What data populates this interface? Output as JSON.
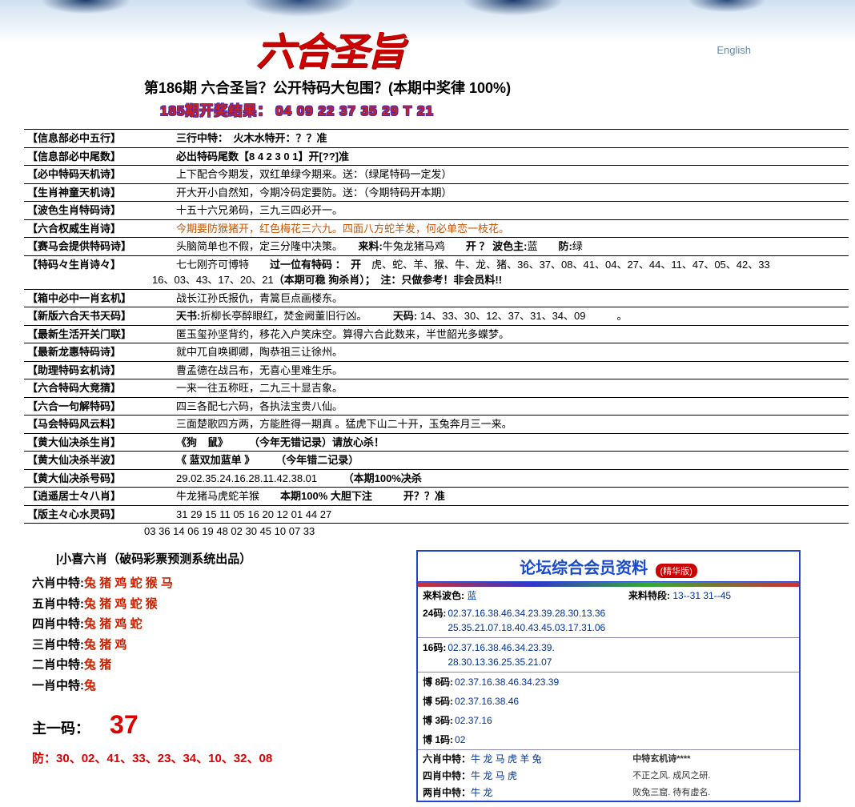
{
  "header": {
    "logo_text": "六合圣旨",
    "english_label": "English",
    "title": "第186期 六合圣旨？公开特码大包围？(本期中奖律 100%)",
    "result_prefix": "185期开奖结果：",
    "result_numbers": "04 09 22 37 35 29 T 21"
  },
  "rows": [
    {
      "label": "【信息部必中五行】",
      "content": "三行中特：　火木水特开：？？准",
      "bold_prefix": true
    },
    {
      "label": "【信息部必中尾数】",
      "content": "必出特码尾数【8 4 2 3 0 1】开[??]准",
      "bold_prefix": true
    },
    {
      "label": "【必中特码天机诗】",
      "content": "上下配合今期发，双红单绿今期来。送：（绿尾特码一定发）"
    },
    {
      "label": "【生肖神童天机诗】",
      "content": "开大开小自然知，今期冷码定要防。送：（今期特码开本期）"
    },
    {
      "label": "【波色生肖特码诗】",
      "content": "十五十六兄弟码，三九三四必开一。"
    },
    {
      "label": "【六合权威生肖诗】",
      "content": "今期要防猴猪开，红色梅花三六九。四面八方蛇羊发，何必单恋一枝花。",
      "color": "red"
    },
    {
      "label": "【赛马会提供特码诗】",
      "content_html": "头脑简单也不假，定三分隆中决策。　　<b>来料:</b>牛兔龙猪马鸡　　<b>开 ？ 波色主:</b>蓝　　<b>防:</b>绿"
    },
    {
      "label": "【特码々生肖诗々】",
      "content_html": "七七刚齐可博特　　<b>过一位有特码 ：　开</b>　虎、蛇、羊、猴、牛、龙、猪、36、37、08、41、04、27、44、11、47、05、42、33<br><span style='margin-left:-30px'>16、03、43、17、20、21<b>（本期可稳 狗杀肖）；　注：只做参考！非会员料!!</b></span>"
    },
    {
      "label": "【箱中必中一肖玄机】",
      "content": "战长江孙氏报仇，青篙巨点画楼东。"
    },
    {
      "label": "【新版六合天书天码】",
      "content_html": "<b>天书:</b>折柳长亭醉眼红，焚金阙董旧行凶。　　　<b>天码:</b> 14、33、30、12、37、31、34、09　　　。"
    },
    {
      "label": "【最新生活开关门联】",
      "content": "匿玉玺孙坚背约，移花入户笑床空。算得六合此数来，半世韶光多蝶梦。"
    },
    {
      "label": "【最新龙惠特码诗】",
      "content": "就中兀自唤卿卿，陶恭祖三让徐州。"
    },
    {
      "label": "【助理特码玄机诗】",
      "content": "曹孟德在战吕布，无喜心里难生乐。"
    },
    {
      "label": "【六合特码大竞猜】",
      "content": "一来一往五称旺，二九三十显吉象。"
    },
    {
      "label": "【六合一句解特码】",
      "content": "四三各配七六码，各执法宝贵八仙。"
    },
    {
      "label": "【马会特码风云料】",
      "content": "三面楚歌四方两，方能胜得一期真 。猛虎下山二十开，玉兔奔月三一来。"
    },
    {
      "label": "【黄大仙决杀生肖】",
      "content_html": "<b>《狗　鼠》　　　（今年无错记录）请放心杀！</b>"
    },
    {
      "label": "【黄大仙决杀半波】",
      "content_html": "<b>《 蓝双加蓝单 》　　　（今年错二记录）</b>"
    },
    {
      "label": "【黄大仙决杀号码】",
      "content_html": "29.02.35.24.16.28.11.42.38.01　　　<b>（本期100%决杀</b>"
    },
    {
      "label": "【逍遥居士々八肖】",
      "content_html": "牛龙猪马虎蛇羊猴　　<b>本期100% 大胆下注　　　开？？准</b>"
    },
    {
      "label": "【版主々心水灵码】",
      "content": "31 29 15 11 05 16 20 12 01 44 27"
    }
  ],
  "extra_numbers": "03 36 14 06 19 48 02 30 45 10 07 33",
  "bottom_left": {
    "title": "|小喜六肖（破码彩票预测系统出品）",
    "zodiac_rows": [
      {
        "label": "六肖中特:",
        "value": "兔 猪 鸡 蛇 猴 马"
      },
      {
        "label": "五肖中特:",
        "value": "兔 猪 鸡 蛇 猴"
      },
      {
        "label": "四肖中特:",
        "value": "兔 猪 鸡 蛇"
      },
      {
        "label": "三肖中特:",
        "value": "兔 猪 鸡"
      },
      {
        "label": "二肖中特:",
        "value": "兔 猪"
      },
      {
        "label": "一肖中特:",
        "value": "兔"
      }
    ],
    "main_code_label": "主一码：",
    "main_code_value": "37",
    "defense_label": "防：",
    "defense_numbers": "30、02、41、33、23、34、10、32、08"
  },
  "bottom_right": {
    "title": "论坛综合会员资料",
    "badge": "(精华版)",
    "info_left_label": "来料波色:",
    "info_left_value": "蓝",
    "info_right_label": "来料特段:",
    "info_right_value": "13--31 31--45",
    "code_rows": [
      {
        "label": "24码:",
        "content": "02.37.16.38.46.34.23.39.28.30.13.36\n25.35.21.07.18.40.43.45.03.17.31.06"
      },
      {
        "label": "16码:",
        "content": "02.37.16.38.46.34.23.39.\n28.30.13.36.25.35.21.07"
      },
      {
        "label": "博 8码:",
        "content": "02.37.16.38.46.34.23.39"
      },
      {
        "label": "博 5码:",
        "content": "02.37.16.38.46"
      },
      {
        "label": "博 3码:",
        "content": "02.37.16"
      },
      {
        "label": "博 1码:",
        "content": "02"
      }
    ],
    "footer_rows": [
      {
        "left_label": "六肖中特：",
        "left_value": "牛 龙 马 虎 羊 兔",
        "right_label": "中特玄机诗****"
      },
      {
        "left_label": "四肖中特：",
        "left_value": "牛 龙 马 虎",
        "right": "不正之风. 成风之研."
      },
      {
        "left_label": "两肖中特：",
        "left_value": "牛 龙",
        "right": "败兔三窟. 待有虚名."
      }
    ]
  },
  "colors": {
    "red": "#cc2200",
    "blue": "#0044cc",
    "orange": "#cc5500",
    "link_blue": "#003399"
  }
}
